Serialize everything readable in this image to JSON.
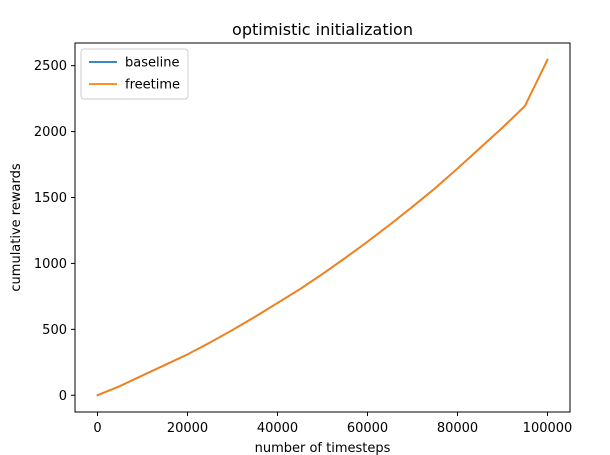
{
  "chart_data": {
    "type": "line",
    "title": "optimistic initialization",
    "xlabel": "number of timesteps",
    "ylabel": "cumulative rewards",
    "xlim": [
      -5000,
      105000
    ],
    "ylim": [
      -127,
      2672
    ],
    "xticks": [
      0,
      20000,
      40000,
      60000,
      80000,
      100000
    ],
    "yticks": [
      0,
      500,
      1000,
      1500,
      2000,
      2500
    ],
    "grid": false,
    "legend_position": "upper-left",
    "x": [
      0,
      5000,
      10000,
      15000,
      20000,
      25000,
      30000,
      35000,
      40000,
      45000,
      50000,
      55000,
      60000,
      65000,
      70000,
      75000,
      80000,
      85000,
      90000,
      95000,
      100000
    ],
    "series": [
      {
        "name": "baseline",
        "color": "#1f77b4",
        "values": [
          0,
          70,
          150,
          230,
          310,
          400,
          495,
          595,
          700,
          805,
          920,
          1040,
          1165,
          1295,
          1430,
          1570,
          1720,
          1875,
          2030,
          2195,
          2545
        ]
      },
      {
        "name": "freetime",
        "color": "#ff7f0e",
        "values": [
          0,
          70,
          150,
          230,
          310,
          400,
          495,
          595,
          700,
          805,
          920,
          1040,
          1165,
          1295,
          1430,
          1570,
          1720,
          1875,
          2030,
          2195,
          2545
        ]
      }
    ]
  }
}
